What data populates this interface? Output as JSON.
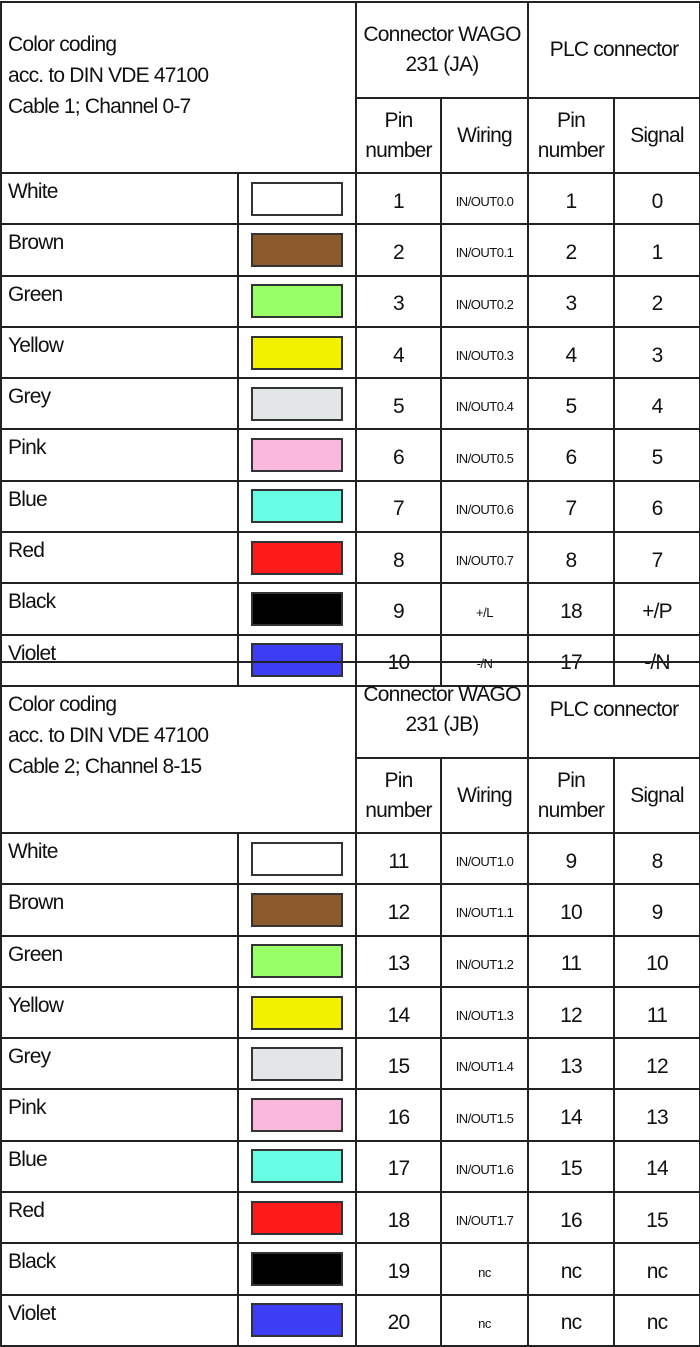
{
  "tables": [
    {
      "title": [
        "Color coding",
        "acc. to DIN VDE 47100",
        "Cable 1; Channel 0-7"
      ],
      "connector_header": "Connector WAGO 231 (JA)",
      "plc_header": "PLC connector",
      "sub_headers": [
        "Pin number",
        "Wiring",
        "Pin number",
        "Signal"
      ],
      "rows": [
        {
          "color": "White",
          "hex": "#ffffff",
          "pin": "1",
          "wiring": "IN/OUT0.0",
          "plc_pin": "1",
          "signal": "0"
        },
        {
          "color": "Brown",
          "hex": "#8b5a2b",
          "pin": "2",
          "wiring": "IN/OUT0.1",
          "plc_pin": "2",
          "signal": "1"
        },
        {
          "color": "Green",
          "hex": "#99ff66",
          "pin": "3",
          "wiring": "IN/OUT0.2",
          "plc_pin": "3",
          "signal": "2"
        },
        {
          "color": "Yellow",
          "hex": "#f2f200",
          "pin": "4",
          "wiring": "IN/OUT0.3",
          "plc_pin": "4",
          "signal": "3"
        },
        {
          "color": "Grey",
          "hex": "#e2e6e6",
          "pin": "5",
          "wiring": "IN/OUT0.4",
          "plc_pin": "5",
          "signal": "4"
        },
        {
          "color": "Pink",
          "hex": "#f9b8dc",
          "pin": "6",
          "wiring": "IN/OUT0.5",
          "plc_pin": "6",
          "signal": "5"
        },
        {
          "color": "Blue",
          "hex": "#66ffe6",
          "pin": "7",
          "wiring": "IN/OUT0.6",
          "plc_pin": "7",
          "signal": "6"
        },
        {
          "color": "Red",
          "hex": "#ff1a1a",
          "pin": "8",
          "wiring": "IN/OUT0.7",
          "plc_pin": "8",
          "signal": "7"
        },
        {
          "color": "Black",
          "hex": "#000000",
          "pin": "9",
          "wiring": "+/L",
          "plc_pin": "18",
          "signal": "+/P"
        },
        {
          "color": "Violet",
          "hex": "#3d3df5",
          "pin": "10",
          "wiring": "-/N",
          "plc_pin": "17",
          "signal": "-/N"
        }
      ]
    },
    {
      "title": [
        "Color coding",
        "acc. to DIN VDE 47100",
        "Cable 2; Channel 8-15"
      ],
      "connector_header": "Connector WAGO 231  (JB)",
      "plc_header": "PLC connector",
      "sub_headers": [
        "Pin number",
        "Wiring",
        "Pin number",
        "Signal"
      ],
      "rows": [
        {
          "color": "White",
          "hex": "#ffffff",
          "pin": "11",
          "wiring": "IN/OUT1.0",
          "plc_pin": "9",
          "signal": "8"
        },
        {
          "color": "Brown",
          "hex": "#8b5a2b",
          "pin": "12",
          "wiring": "IN/OUT1.1",
          "plc_pin": "10",
          "signal": "9"
        },
        {
          "color": "Green",
          "hex": "#99ff66",
          "pin": "13",
          "wiring": "IN/OUT1.2",
          "plc_pin": "11",
          "signal": "10"
        },
        {
          "color": "Yellow",
          "hex": "#f2f200",
          "pin": "14",
          "wiring": "IN/OUT1.3",
          "plc_pin": "12",
          "signal": "11"
        },
        {
          "color": "Grey",
          "hex": "#e2e6e6",
          "pin": "15",
          "wiring": "IN/OUT1.4",
          "plc_pin": "13",
          "signal": "12"
        },
        {
          "color": "Pink",
          "hex": "#f9b8dc",
          "pin": "16",
          "wiring": "IN/OUT1.5",
          "plc_pin": "14",
          "signal": "13"
        },
        {
          "color": "Blue",
          "hex": "#66ffe6",
          "pin": "17",
          "wiring": "IN/OUT1.6",
          "plc_pin": "15",
          "signal": "14"
        },
        {
          "color": "Red",
          "hex": "#ff1a1a",
          "pin": "18",
          "wiring": "IN/OUT1.7",
          "plc_pin": "16",
          "signal": "15"
        },
        {
          "color": "Black",
          "hex": "#000000",
          "pin": "19",
          "wiring": "nc",
          "plc_pin": "nc",
          "signal": "nc"
        },
        {
          "color": "Violet",
          "hex": "#3d3df5",
          "pin": "20",
          "wiring": "nc",
          "plc_pin": "nc",
          "signal": "nc"
        }
      ]
    }
  ]
}
